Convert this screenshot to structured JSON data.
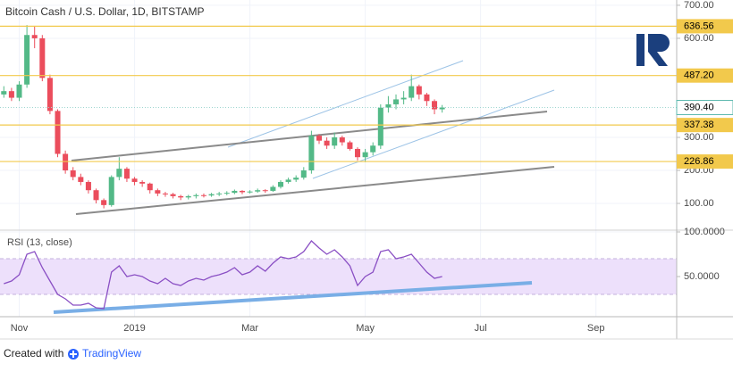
{
  "chart_data": [
    {
      "type": "candlestick",
      "title": "Bitcoin Cash / U.S. Dollar, 1D, BITSTAMP",
      "categories": [
        null,
        null,
        "Nov",
        null,
        null,
        null,
        null,
        null,
        null,
        null,
        null,
        null,
        null,
        null,
        null,
        null,
        null,
        "2019",
        null,
        null,
        null,
        null,
        null,
        null,
        null,
        null,
        null,
        null,
        null,
        null,
        null,
        null,
        "Mar",
        null,
        null,
        null,
        null,
        null,
        null,
        null,
        null,
        null,
        null,
        null,
        null,
        null,
        null,
        "May",
        null,
        null,
        null,
        null,
        null,
        null,
        null,
        null,
        null,
        null,
        null,
        null,
        null,
        null,
        "Jul",
        null,
        null,
        null,
        null,
        null,
        null,
        null,
        null,
        null,
        null,
        null,
        null,
        null,
        null,
        "Sep",
        null,
        null,
        null,
        null,
        null,
        null,
        null,
        null,
        null,
        null
      ],
      "open": [
        430,
        440,
        420,
        460,
        610,
        600,
        480,
        380,
        250,
        200,
        180,
        165,
        140,
        110,
        95,
        180,
        205,
        175,
        165,
        160,
        140,
        130,
        128,
        122,
        118,
        122,
        125,
        124,
        128,
        130,
        132,
        138,
        134,
        136,
        140,
        138,
        150,
        165,
        172,
        178,
        200,
        305,
        290,
        275,
        300,
        285,
        265,
        240,
        255,
        275,
        390,
        400,
        415,
        420,
        455,
        430,
        410,
        385,
        null,
        null,
        null,
        null,
        null,
        null,
        null,
        null,
        null,
        null,
        null,
        null,
        null,
        null,
        null,
        null,
        null,
        null,
        null,
        null,
        null,
        null,
        null,
        null,
        null,
        null,
        null,
        null,
        null,
        null
      ],
      "high": [
        455,
        450,
        470,
        640,
        636,
        610,
        490,
        385,
        260,
        210,
        190,
        170,
        145,
        115,
        185,
        240,
        210,
        180,
        170,
        163,
        145,
        135,
        132,
        126,
        126,
        130,
        130,
        132,
        135,
        137,
        142,
        140,
        140,
        145,
        143,
        155,
        170,
        178,
        185,
        210,
        320,
        310,
        300,
        315,
        305,
        290,
        270,
        265,
        285,
        400,
        425,
        430,
        440,
        490,
        460,
        435,
        415,
        398,
        null,
        null,
        null,
        null,
        null,
        null,
        null,
        null,
        null,
        null,
        null,
        null,
        null,
        null,
        null,
        null,
        null,
        null,
        null,
        null,
        null,
        null,
        null,
        null,
        null,
        null,
        null,
        null,
        null,
        null
      ],
      "low": [
        420,
        410,
        410,
        450,
        570,
        470,
        370,
        240,
        190,
        170,
        155,
        130,
        100,
        85,
        90,
        170,
        165,
        155,
        150,
        130,
        122,
        120,
        115,
        110,
        112,
        115,
        118,
        120,
        122,
        125,
        128,
        128,
        130,
        132,
        132,
        135,
        145,
        160,
        165,
        172,
        190,
        280,
        265,
        265,
        275,
        260,
        230,
        225,
        245,
        265,
        375,
        385,
        400,
        410,
        415,
        395,
        370,
        375,
        null,
        null,
        null,
        null,
        null,
        null,
        null,
        null,
        null,
        null,
        null,
        null,
        null,
        null,
        null,
        null,
        null,
        null,
        null,
        null,
        null,
        null,
        null,
        null,
        null,
        null,
        null,
        null,
        null,
        null
      ],
      "close": [
        440,
        420,
        460,
        610,
        600,
        480,
        380,
        250,
        200,
        180,
        165,
        140,
        110,
        95,
        180,
        205,
        175,
        165,
        160,
        140,
        130,
        128,
        122,
        118,
        122,
        125,
        124,
        128,
        130,
        132,
        138,
        134,
        136,
        140,
        138,
        150,
        165,
        172,
        178,
        200,
        305,
        290,
        275,
        300,
        285,
        265,
        240,
        255,
        275,
        390,
        400,
        415,
        420,
        455,
        430,
        410,
        385,
        390.4,
        null,
        null,
        null,
        null,
        null,
        null,
        null,
        null,
        null,
        null,
        null,
        null,
        null,
        null,
        null,
        null,
        null,
        null,
        null,
        null,
        null,
        null,
        null,
        null,
        null,
        null,
        null,
        null,
        null,
        null
      ],
      "up_color": "#53b987",
      "down_color": "#eb4d5c",
      "ylim": [
        19,
        716
      ],
      "yticks": [
        {
          "value": 700,
          "label": "700.00"
        },
        {
          "value": 600,
          "label": "600.00"
        },
        {
          "value": 300,
          "label": "300.00"
        },
        {
          "value": 200,
          "label": "200.00"
        },
        {
          "value": 100,
          "label": "100.00"
        }
      ],
      "levels": [
        {
          "value": 636.56,
          "label": "636.56"
        },
        {
          "value": 487.2,
          "label": "487.20"
        },
        {
          "value": 337.38,
          "label": "337.38"
        },
        {
          "value": 226.86,
          "label": "226.86"
        }
      ],
      "level_color": "#f2c94c",
      "last_price": {
        "value": 390.4,
        "label": "390.40"
      },
      "grid": true
    },
    {
      "type": "line",
      "title": "RSI (13, close)",
      "values": [
        42,
        45,
        52,
        75,
        78,
        60,
        45,
        30,
        25,
        18,
        18,
        20,
        15,
        14,
        55,
        62,
        50,
        52,
        50,
        45,
        42,
        48,
        42,
        40,
        45,
        48,
        46,
        50,
        52,
        55,
        60,
        52,
        55,
        62,
        56,
        65,
        72,
        70,
        72,
        78,
        90,
        82,
        75,
        80,
        72,
        62,
        40,
        50,
        55,
        78,
        80,
        70,
        72,
        75,
        65,
        55,
        48,
        50
      ],
      "color": "#8a4fc4",
      "ylim": [
        5,
        100
      ],
      "yticks": [
        {
          "value": 100,
          "label": "100.0000"
        },
        {
          "value": 50,
          "label": "50.0000"
        }
      ],
      "band": [
        30,
        70
      ],
      "band_color": "#ede0fb",
      "grid": true
    }
  ],
  "footer": {
    "prefix": "Created with",
    "brand": "TradingView"
  }
}
